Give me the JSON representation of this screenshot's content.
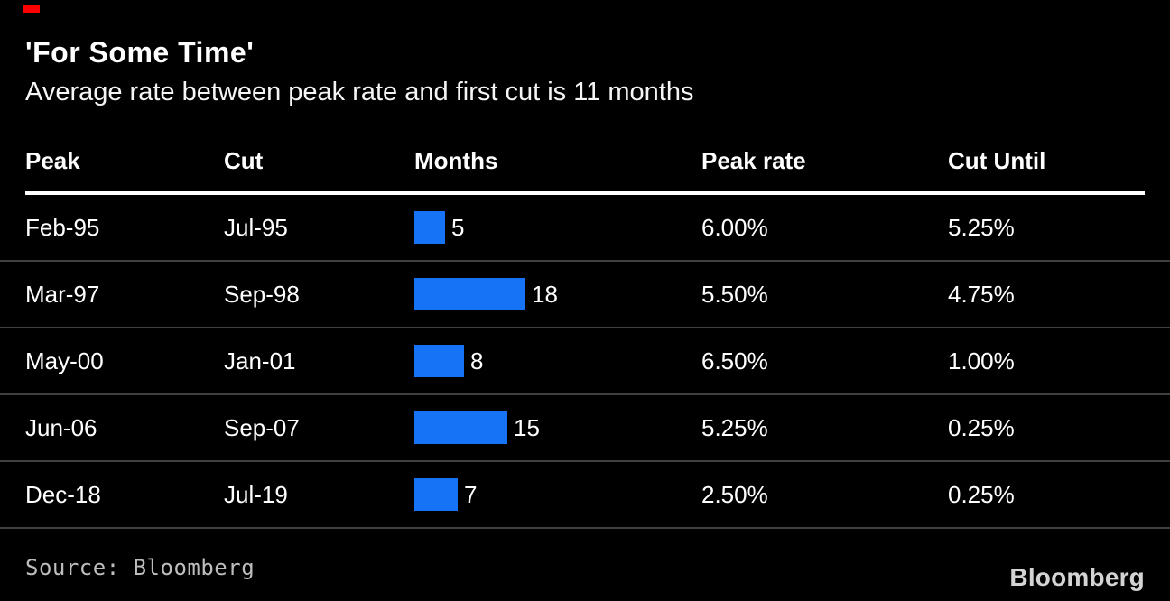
{
  "colors": {
    "background": "#000000",
    "bar_blue": "#1673f6",
    "accent_red": "#ff0000",
    "row_divider": "#3f3f3f",
    "header_rule": "#ffffff",
    "source_gray": "#bdbdbd"
  },
  "header": {
    "title": "'For Some Time'",
    "subtitle": "Average rate between peak rate and first cut is 11 months"
  },
  "table": {
    "columns": [
      "Peak",
      "Cut",
      "Months",
      "Peak rate",
      "Cut Until"
    ],
    "rows": [
      {
        "peak": "Feb-95",
        "cut": "Jul-95",
        "months": 5,
        "peak_rate": "6.00%",
        "cut_until": "5.25%"
      },
      {
        "peak": "Mar-97",
        "cut": "Sep-98",
        "months": 18,
        "peak_rate": "5.50%",
        "cut_until": "4.75%"
      },
      {
        "peak": "May-00",
        "cut": "Jan-01",
        "months": 8,
        "peak_rate": "6.50%",
        "cut_until": "1.00%"
      },
      {
        "peak": "Jun-06",
        "cut": "Sep-07",
        "months": 15,
        "peak_rate": "5.25%",
        "cut_until": "0.25%"
      },
      {
        "peak": "Dec-18",
        "cut": "Jul-19",
        "months": 7,
        "peak_rate": "2.50%",
        "cut_until": "0.25%"
      }
    ]
  },
  "chart_data": {
    "type": "bar",
    "orientation": "horizontal",
    "title": "'For Some Time'",
    "subtitle": "Average rate between peak rate and first cut is 11 months",
    "value_column": "Months",
    "categories": [
      "Feb-95",
      "Mar-97",
      "May-00",
      "Jun-06",
      "Dec-18"
    ],
    "values": [
      5,
      18,
      8,
      15,
      7
    ],
    "series": [
      {
        "name": "Peak",
        "values": [
          "Feb-95",
          "Mar-97",
          "May-00",
          "Jun-06",
          "Dec-18"
        ]
      },
      {
        "name": "Cut",
        "values": [
          "Jul-95",
          "Sep-98",
          "Jan-01",
          "Sep-07",
          "Jul-19"
        ]
      },
      {
        "name": "Months",
        "values": [
          5,
          18,
          8,
          15,
          7
        ]
      },
      {
        "name": "Peak rate",
        "values": [
          "6.00%",
          "5.50%",
          "6.50%",
          "5.25%",
          "2.50%"
        ]
      },
      {
        "name": "Cut Until",
        "values": [
          "5.25%",
          "4.75%",
          "1.00%",
          "0.25%",
          "0.25%"
        ]
      }
    ],
    "bar_color": "#1673f6",
    "legend": "none",
    "grid": "off"
  },
  "footer": {
    "source_label": "Source:  Bloomberg",
    "brand": "Bloomberg"
  }
}
